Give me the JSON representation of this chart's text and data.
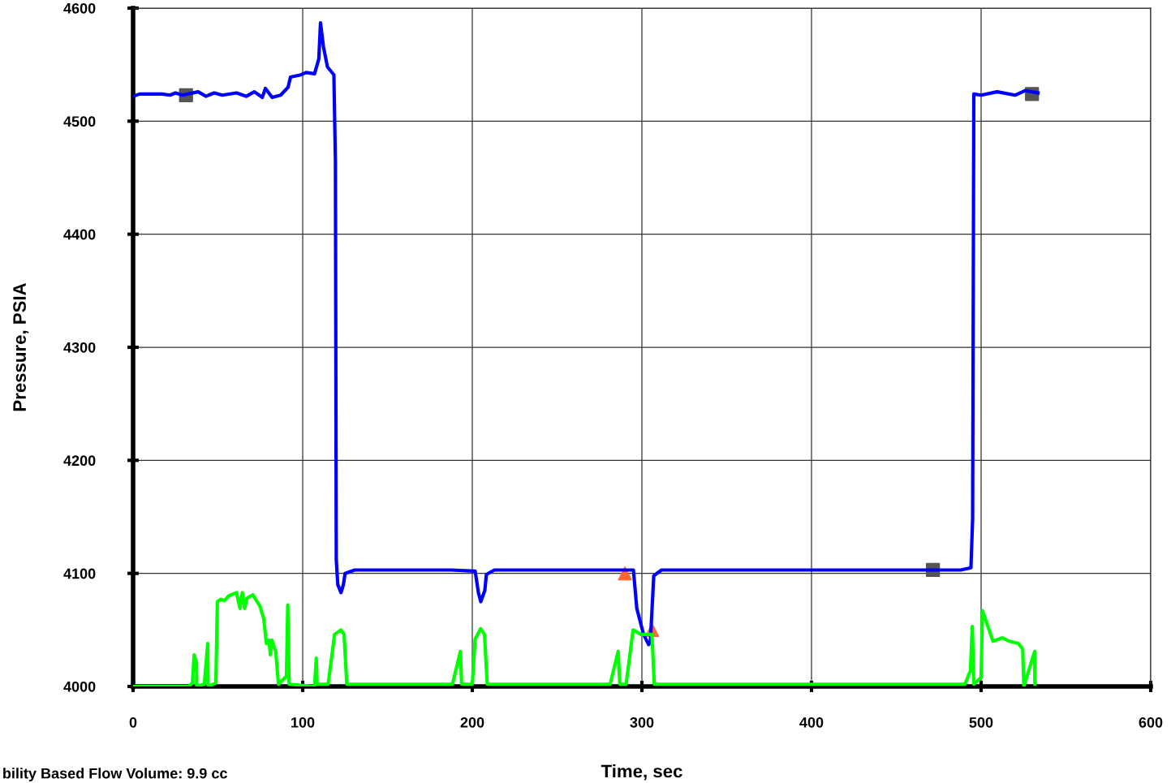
{
  "chart_data": {
    "type": "line",
    "xlabel": "Time, sec",
    "ylabel": "Pressure, PSIA",
    "xlim": [
      0,
      600
    ],
    "xticks": [
      0,
      100,
      200,
      300,
      400,
      500,
      600
    ],
    "ylim": [
      4000,
      4600
    ],
    "yticks": [
      4000,
      4100,
      4200,
      4300,
      4400,
      4500,
      4600
    ],
    "grid": true,
    "legend": false,
    "marker": "none",
    "line_style": "solid",
    "annotations": [
      "bility Based Flow Volume: 9.9 cc"
    ],
    "series": [
      {
        "color": "#0000ff",
        "x": [
          0,
          3.8,
          17,
          21.8,
          25,
          29,
          38.4,
          43,
          47.8,
          52.6,
          61,
          66.8,
          71.5,
          76.2,
          78,
          82,
          87,
          91.4,
          92.8,
          99,
          102,
          107,
          109.5,
          110.5,
          112.2,
          114.6,
          118.4,
          119.3,
          119.8,
          120.7,
          122.6,
          124,
          125,
          130.7,
          187.5,
          201.7,
          203.6,
          205,
          207.4,
          208.3,
          213,
          295,
          297,
          301,
          304,
          305,
          307,
          311.6,
          481,
          488,
          494,
          495,
          495.7,
          500,
          509.5,
          520,
          526,
          533.5
        ],
        "values": [
          4522,
          4524,
          4524,
          4523,
          4525,
          4523,
          4526,
          4522,
          4525,
          4523,
          4525,
          4522,
          4526,
          4521,
          4529,
          4521,
          4523,
          4530,
          4539,
          4541,
          4543,
          4542,
          4555,
          4587,
          4566,
          4548,
          4541,
          4464,
          4112,
          4090,
          4083,
          4090,
          4100,
          4103,
          4103,
          4102,
          4083,
          4075,
          4085,
          4099,
          4103,
          4103,
          4069,
          4046,
          4037,
          4040,
          4098,
          4103,
          4103,
          4103,
          4105,
          4148,
          4524,
          4523,
          4526,
          4523,
          4527,
          4525
        ]
      },
      {
        "color": "#00ff00",
        "x": [
          0,
          32.7,
          35,
          36,
          37.4,
          37.5,
          42,
          44,
          44.2,
          48.8,
          49.7,
          51.6,
          54,
          56.3,
          61,
          63,
          64.4,
          65.8,
          67.1,
          70.6,
          74.8,
          77,
          78.6,
          80,
          81,
          81.8,
          84.1,
          85.7,
          90.4,
          91.2,
          92,
          107,
          108,
          108.5,
          115,
          118.8,
          122.6,
          124.4,
          126,
          188.3,
          193,
          193.7,
          200,
          201.7,
          204.9,
          207.2,
          208.8,
          281.3,
          286,
          287,
          290.7,
          294.8,
          299.5,
          305.9,
          307.3,
          490.5,
          493.7,
          494.8,
          495.7,
          500,
          500.8,
          503.1,
          507,
          512.6,
          516.5,
          522,
          524.5,
          525.2,
          531.6,
          531.7
        ],
        "values": [
          4000,
          4000,
          4003,
          4028,
          4021,
          4000,
          4002,
          4038,
          4000,
          4003,
          4075,
          4077,
          4076,
          4080,
          4083,
          4069,
          4083,
          4069,
          4078,
          4081,
          4071,
          4060,
          4038,
          4041,
          4028,
          4041,
          4031,
          4002,
          4009,
          4072,
          4002,
          4000,
          4025,
          4002,
          4002,
          4046,
          4050,
          4046,
          4002,
          4002,
          4031,
          4002,
          4002,
          4042,
          4051,
          4046,
          4002,
          4002,
          4031,
          4002,
          4002,
          4050,
          4046,
          4046,
          4002,
          4002,
          4014,
          4053,
          4002,
          4008,
          4067,
          4057,
          4040,
          4043,
          4040,
          4038,
          4033,
          4000,
          4031,
          4002
        ]
      },
      {
        "type": "scatter",
        "color": "#555555",
        "marker": "square",
        "x": [
          31.2,
          471.6,
          530
        ],
        "values": [
          4523,
          4103,
          4524
        ]
      },
      {
        "type": "scatter",
        "color": "#ff6633",
        "marker": "triangle",
        "x": [
          290,
          306
        ],
        "values": [
          4100,
          4050
        ]
      }
    ]
  }
}
